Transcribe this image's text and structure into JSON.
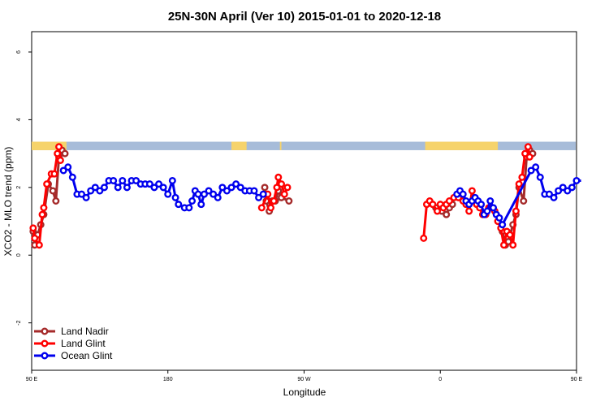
{
  "chart_data": {
    "type": "line",
    "title": "25N-30N April (Ver 10)   2015-01-01 to 2020-12-18",
    "xlabel": "Longitude",
    "ylabel": "XCO2 - MLO trend (ppm)",
    "xlim": [
      90,
      450
    ],
    "ylim": [
      -3.4,
      6.6
    ],
    "xticks": [
      {
        "value": 90,
        "label": "90 E"
      },
      {
        "value": 180,
        "label": "180"
      },
      {
        "value": 270,
        "label": "90 W"
      },
      {
        "value": 360,
        "label": "0"
      },
      {
        "value": 450,
        "label": "90 E"
      },
      {
        "value": 540,
        "label": "180"
      }
    ],
    "yticks": [
      {
        "value": -2,
        "label": "-2"
      },
      {
        "value": 0,
        "label": "0"
      },
      {
        "value": 2,
        "label": "2"
      },
      {
        "value": 4,
        "label": "4"
      },
      {
        "value": 6,
        "label": "6"
      }
    ],
    "legend_position": "bottom-left",
    "surface_band": {
      "y_range": [
        3.1,
        3.35
      ],
      "ocean_color": "#a7bcd9",
      "land_color": "#f6d36b",
      "land_segments": [
        [
          90,
          113
        ],
        [
          222,
          232
        ],
        [
          254,
          255
        ],
        [
          350,
          398
        ],
        [
          450,
          473
        ],
        [
          582,
          592
        ]
      ]
    },
    "series": [
      {
        "name": "Land Nadir",
        "color": "#a52a2a",
        "points": [
          [
            91,
            0.7
          ],
          [
            92,
            0.3
          ],
          [
            94,
            0.6
          ],
          [
            96,
            0.9
          ],
          [
            98,
            1.2
          ],
          [
            101,
            2.1
          ],
          [
            104,
            1.9
          ],
          [
            106,
            1.6
          ],
          [
            108,
            2.9
          ],
          [
            110,
            3.1
          ],
          [
            112,
            3.0
          ],
          [
            244,
            2.0
          ],
          [
            245,
            1.6
          ],
          [
            247,
            1.3
          ],
          [
            249,
            1.6
          ],
          [
            251,
            1.6
          ],
          [
            253,
            1.9
          ],
          [
            255,
            1.7
          ],
          [
            260,
            1.6
          ],
          [
            357,
            1.4
          ],
          [
            361,
            1.3
          ],
          [
            364,
            1.2
          ],
          [
            366,
            1.4
          ],
          [
            368,
            1.5
          ],
          [
            401,
            0.7
          ],
          [
            403,
            0.3
          ],
          [
            405,
            0.4
          ],
          [
            408,
            0.9
          ],
          [
            410,
            1.2
          ],
          [
            412,
            2.0
          ],
          [
            415,
            1.6
          ],
          [
            417,
            2.9
          ],
          [
            419,
            3.1
          ],
          [
            421,
            3.0
          ]
        ]
      },
      {
        "name": "Land Glint",
        "color": "#ff0000",
        "points": [
          [
            91,
            0.8
          ],
          [
            92,
            0.5
          ],
          [
            95,
            0.3
          ],
          [
            97,
            1.2
          ],
          [
            98,
            1.4
          ],
          [
            100,
            2.1
          ],
          [
            103,
            2.4
          ],
          [
            105,
            2.4
          ],
          [
            107,
            3.0
          ],
          [
            108,
            3.2
          ],
          [
            109,
            2.8
          ],
          [
            242,
            1.4
          ],
          [
            246,
            1.8
          ],
          [
            248,
            1.4
          ],
          [
            250,
            1.6
          ],
          [
            252,
            2.0
          ],
          [
            253,
            2.3
          ],
          [
            255,
            2.1
          ],
          [
            257,
            1.8
          ],
          [
            259,
            2.0
          ],
          [
            349,
            0.5
          ],
          [
            351,
            1.5
          ],
          [
            353,
            1.6
          ],
          [
            355,
            1.5
          ],
          [
            358,
            1.3
          ],
          [
            360,
            1.5
          ],
          [
            362,
            1.4
          ],
          [
            364,
            1.5
          ],
          [
            366,
            1.6
          ],
          [
            369,
            1.7
          ],
          [
            372,
            1.7
          ],
          [
            375,
            1.6
          ],
          [
            377,
            1.5
          ],
          [
            379,
            1.3
          ],
          [
            381,
            1.9
          ],
          [
            384,
            1.5
          ],
          [
            386,
            1.4
          ],
          [
            388,
            1.2
          ],
          [
            390,
            1.2
          ],
          [
            392,
            1.4
          ],
          [
            394,
            1.4
          ],
          [
            396,
            1.3
          ],
          [
            398,
            1.0
          ],
          [
            400,
            0.8
          ],
          [
            402,
            0.3
          ],
          [
            404,
            0.7
          ],
          [
            406,
            0.6
          ],
          [
            408,
            0.3
          ],
          [
            410,
            1.3
          ],
          [
            412,
            2.1
          ],
          [
            414,
            2.3
          ],
          [
            416,
            3.0
          ],
          [
            418,
            3.2
          ],
          [
            419,
            2.9
          ]
        ]
      },
      {
        "name": "Ocean Glint",
        "color": "#0000ee",
        "points": [
          [
            111,
            2.5
          ],
          [
            114,
            2.6
          ],
          [
            117,
            2.3
          ],
          [
            120,
            1.8
          ],
          [
            123,
            1.8
          ],
          [
            126,
            1.7
          ],
          [
            129,
            1.9
          ],
          [
            132,
            2.0
          ],
          [
            135,
            1.9
          ],
          [
            138,
            2.0
          ],
          [
            141,
            2.2
          ],
          [
            144,
            2.2
          ],
          [
            147,
            2.0
          ],
          [
            150,
            2.2
          ],
          [
            153,
            2.0
          ],
          [
            156,
            2.2
          ],
          [
            159,
            2.2
          ],
          [
            162,
            2.1
          ],
          [
            165,
            2.1
          ],
          [
            168,
            2.1
          ],
          [
            171,
            2.0
          ],
          [
            174,
            2.1
          ],
          [
            177,
            2.0
          ],
          [
            180,
            1.8
          ],
          [
            183,
            2.2
          ],
          [
            185,
            1.7
          ],
          [
            187,
            1.5
          ],
          [
            191,
            1.4
          ],
          [
            194,
            1.4
          ],
          [
            196,
            1.6
          ],
          [
            198,
            1.9
          ],
          [
            200,
            1.8
          ],
          [
            202,
            1.5
          ],
          [
            204,
            1.8
          ],
          [
            207,
            1.9
          ],
          [
            210,
            1.8
          ],
          [
            213,
            1.7
          ],
          [
            216,
            2.0
          ],
          [
            219,
            1.9
          ],
          [
            222,
            2.0
          ],
          [
            225,
            2.1
          ],
          [
            228,
            2.0
          ],
          [
            231,
            1.9
          ],
          [
            234,
            1.9
          ],
          [
            237,
            1.9
          ],
          [
            240,
            1.7
          ],
          [
            243,
            1.8
          ],
          [
            371,
            1.8
          ],
          [
            373,
            1.9
          ],
          [
            375,
            1.8
          ],
          [
            377,
            1.6
          ],
          [
            379,
            1.5
          ],
          [
            381,
            1.6
          ],
          [
            383,
            1.7
          ],
          [
            385,
            1.6
          ],
          [
            387,
            1.5
          ],
          [
            389,
            1.2
          ],
          [
            391,
            1.3
          ],
          [
            393,
            1.6
          ],
          [
            395,
            1.4
          ],
          [
            397,
            1.2
          ],
          [
            399,
            1.1
          ],
          [
            401,
            0.9
          ],
          [
            420,
            2.5
          ],
          [
            423,
            2.6
          ],
          [
            426,
            2.3
          ],
          [
            429,
            1.8
          ],
          [
            432,
            1.8
          ],
          [
            435,
            1.7
          ],
          [
            438,
            1.9
          ],
          [
            441,
            2.0
          ],
          [
            444,
            1.9
          ],
          [
            447,
            2.0
          ],
          [
            450,
            2.2
          ],
          [
            453,
            2.2
          ]
        ]
      }
    ]
  }
}
